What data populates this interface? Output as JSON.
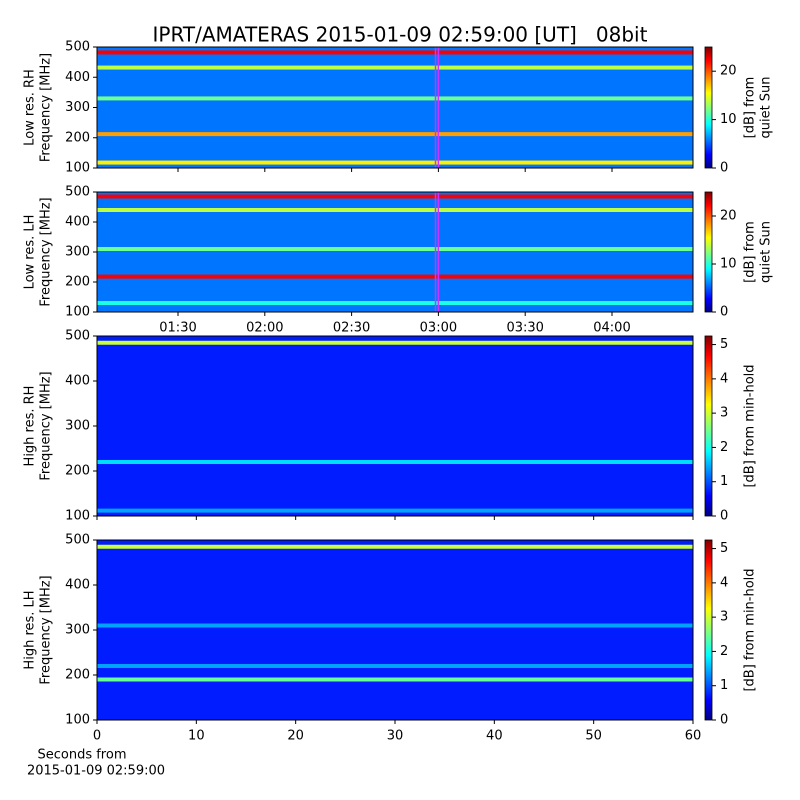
{
  "chart_data": [
    {
      "type": "heatmap",
      "title": "IPRT/AMATERAS 2015-01-09 02:59:00 [UT]   08bit",
      "ylabel": [
        "Low res. RH",
        "Frequency [MHz]"
      ],
      "ylim": [
        100,
        500
      ],
      "yticks": [
        100,
        200,
        300,
        400,
        500
      ],
      "xlim": [
        62,
        268
      ],
      "highlight": [
        179,
        180
      ],
      "highlight_color": "#cc33ff",
      "background": 6,
      "clim": [
        0,
        25
      ],
      "cticks": [
        0,
        10,
        20
      ],
      "clabel": [
        "[dB] from",
        "quiet Sun"
      ],
      "bands": [
        {
          "freq": 482,
          "value": 22
        },
        {
          "freq": 432,
          "value": 14
        },
        {
          "freq": 330,
          "value": 12
        },
        {
          "freq": 212,
          "value": 18
        },
        {
          "freq": 118,
          "value": 16
        }
      ]
    },
    {
      "type": "heatmap",
      "ylabel": [
        "Low res. LH",
        "Frequency [MHz]"
      ],
      "ylim": [
        100,
        500
      ],
      "yticks": [
        100,
        200,
        300,
        400,
        500
      ],
      "xlim": [
        62,
        268
      ],
      "highlight": [
        179,
        180
      ],
      "highlight_color": "#cc33ff",
      "xticks": [
        {
          "value": 90,
          "label": "01:30"
        },
        {
          "value": 120,
          "label": "02:00"
        },
        {
          "value": 150,
          "label": "02:30"
        },
        {
          "value": 180,
          "label": "03:00"
        },
        {
          "value": 210,
          "label": "03:30"
        },
        {
          "value": 240,
          "label": "04:00"
        }
      ],
      "background": 6,
      "clim": [
        0,
        25
      ],
      "cticks": [
        0,
        10,
        20
      ],
      "clabel": [
        "[dB] from",
        "quiet Sun"
      ],
      "bands": [
        {
          "freq": 485,
          "value": 22
        },
        {
          "freq": 440,
          "value": 14
        },
        {
          "freq": 310,
          "value": 12
        },
        {
          "freq": 218,
          "value": 22
        },
        {
          "freq": 130,
          "value": 10
        }
      ]
    },
    {
      "type": "heatmap",
      "ylabel": [
        "High res. RH",
        "Frequency [MHz]"
      ],
      "ylim": [
        100,
        500
      ],
      "yticks": [
        100,
        200,
        300,
        400,
        500
      ],
      "xlim": [
        0,
        60
      ],
      "background": 0.8,
      "clim": [
        0,
        5.25
      ],
      "cticks": [
        0,
        1,
        2,
        3,
        4,
        5
      ],
      "clabel": [
        "[dB] from min-hold"
      ],
      "bands": [
        {
          "freq": 485,
          "value": 3
        },
        {
          "freq": 220,
          "value": 1.8
        },
        {
          "freq": 112,
          "value": 1.5
        }
      ]
    },
    {
      "type": "heatmap",
      "ylabel": [
        "High res. LH",
        "Frequency [MHz]"
      ],
      "ylim": [
        100,
        500
      ],
      "yticks": [
        100,
        200,
        300,
        400,
        500
      ],
      "xlim": [
        0,
        60
      ],
      "xticks": [
        0,
        10,
        20,
        30,
        40,
        50,
        60
      ],
      "xlabel": [
        "Seconds from",
        "2015-01-09 02:59:00"
      ],
      "background": 0.8,
      "clim": [
        0,
        5.25
      ],
      "cticks": [
        0,
        1,
        2,
        3,
        4,
        5
      ],
      "clabel": [
        "[dB] from min-hold"
      ],
      "bands": [
        {
          "freq": 485,
          "value": 3
        },
        {
          "freq": 310,
          "value": 1.5
        },
        {
          "freq": 220,
          "value": 1.5
        },
        {
          "freq": 190,
          "value": 2.5
        }
      ]
    }
  ]
}
